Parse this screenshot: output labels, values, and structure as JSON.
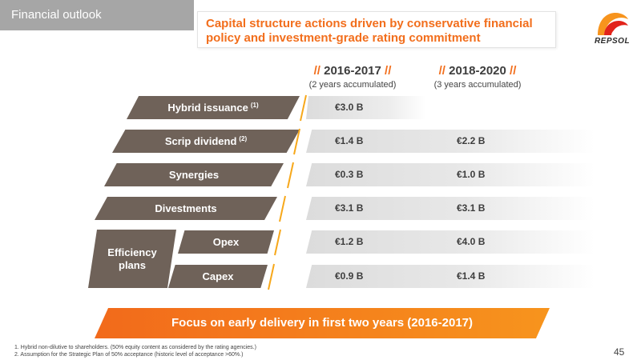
{
  "header": {
    "section": "Financial outlook",
    "title_line1": "Capital structure actions driven by conservative financial",
    "title_line2": "policy and investment-grade rating commitment",
    "logo_text": "REPSOL"
  },
  "columns": [
    {
      "prefix": "// ",
      "period": "2016-2017",
      "suffix": " //",
      "sub": "(2 years accumulated)"
    },
    {
      "prefix": "// ",
      "period": "2018-2020",
      "suffix": " //",
      "sub": "(3 years accumulated)"
    }
  ],
  "rows": [
    {
      "label": "Hybrid issuance",
      "note": "(1)",
      "v1": "€3.0 B",
      "v2": ""
    },
    {
      "label": "Scrip dividend",
      "note": "(2)",
      "v1": "€1.4 B",
      "v2": "€2.2 B"
    },
    {
      "label": "Synergies",
      "note": "",
      "v1": "€0.3 B",
      "v2": "€1.0 B"
    },
    {
      "label": "Divestments",
      "note": "",
      "v1": "€3.1 B",
      "v2": "€3.1 B"
    },
    {
      "label": "Opex",
      "note": "",
      "v1": "€1.2 B",
      "v2": "€4.0 B"
    },
    {
      "label": "Capex",
      "note": "",
      "v1": "€0.9 B",
      "v2": "€1.4 B"
    }
  ],
  "efficiency_group": {
    "line1": "Efficiency",
    "line2": "plans"
  },
  "banner": "Focus on early delivery in first two years (2016-2017)",
  "footnotes": [
    "1. Hybrid non-dilutive to shareholders. (50% equity content as considered by the rating agencies.)",
    "2. Assumption for the Strategic Plan of 50% acceptance (historic level of acceptance >60%.)"
  ],
  "page_number": "45",
  "colors": {
    "accent": "#f26e1c",
    "label_bg": "#6f6259",
    "section_bg": "#a6a6a6",
    "logo_red": "#e2231a",
    "logo_orange": "#f7941d"
  }
}
